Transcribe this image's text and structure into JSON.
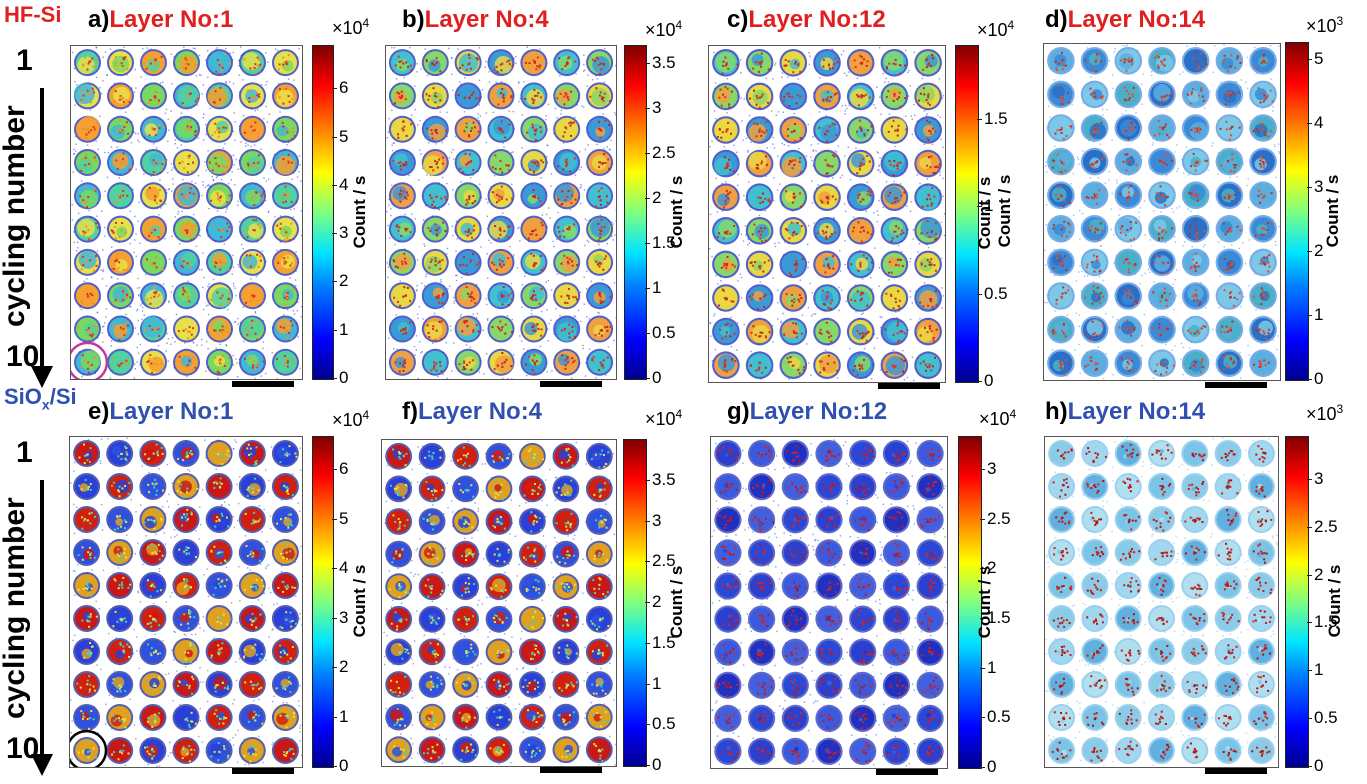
{
  "rows": [
    {
      "tag": "HF-Si",
      "tag_sub": "",
      "tag_suffix": "",
      "tag_color": "#e02020",
      "title_color": "#e02020",
      "cycle_label": "cycling number",
      "cycle_start": "1",
      "cycle_end": "10",
      "panels": [
        {
          "letter": "a)",
          "title": "Layer No:1",
          "exp_base": "×10",
          "exp_pow": "4",
          "ticks": [
            "0",
            "1",
            "2",
            "3",
            "4",
            "5",
            "6"
          ],
          "tick_fracs": [
            0,
            0.145,
            0.29,
            0.435,
            0.58,
            0.725,
            0.87
          ],
          "unit": "Count / s",
          "unit_side": "right",
          "style": "hf_bright",
          "highlight": "magenta"
        },
        {
          "letter": "b)",
          "title": "Layer No:4",
          "exp_base": "×10",
          "exp_pow": "4",
          "ticks": [
            "0",
            "0.5",
            "1",
            "1.5",
            "2",
            "2.5",
            "3",
            "3.5"
          ],
          "tick_fracs": [
            0,
            0.135,
            0.27,
            0.405,
            0.54,
            0.675,
            0.81,
            0.945
          ],
          "unit": "Count / s",
          "unit_side": "right",
          "style": "hf_mid",
          "highlight": ""
        },
        {
          "letter": "c)",
          "title": "Layer No:12",
          "exp_base": "×10",
          "exp_pow": "4",
          "ticks": [
            "0",
            "0.5",
            "1",
            "1.5"
          ],
          "tick_fracs": [
            0,
            0.26,
            0.52,
            0.78
          ],
          "unit": "Count / s",
          "unit_side": "left",
          "style": "hf_mid",
          "highlight": ""
        },
        {
          "letter": "d)",
          "title": "Layer No:14",
          "exp_base": "×10",
          "exp_pow": "3",
          "ticks": [
            "0",
            "1",
            "2",
            "3",
            "4",
            "5"
          ],
          "tick_fracs": [
            0,
            0.19,
            0.38,
            0.57,
            0.76,
            0.95
          ],
          "unit": "Count / s",
          "unit_side": "both",
          "style": "hf_sparse",
          "highlight": ""
        }
      ]
    },
    {
      "tag": "SiO",
      "tag_sub": "x",
      "tag_suffix": "/Si",
      "tag_color": "#3050b0",
      "title_color": "#3050b0",
      "cycle_label": "cycling number",
      "cycle_start": "1",
      "cycle_end": "10",
      "panels": [
        {
          "letter": "e)",
          "title": "Layer No:1",
          "exp_base": "×10",
          "exp_pow": "4",
          "ticks": [
            "0",
            "1",
            "2",
            "3",
            "4",
            "5",
            "6"
          ],
          "tick_fracs": [
            0,
            0.15,
            0.3,
            0.45,
            0.6,
            0.75,
            0.9
          ],
          "unit": "Count / s",
          "unit_side": "right",
          "style": "sio_hot",
          "highlight": "black"
        },
        {
          "letter": "f)",
          "title": "Layer No:4",
          "exp_base": "×10",
          "exp_pow": "4",
          "ticks": [
            "0",
            "0.5",
            "1",
            "1.5",
            "2",
            "2.5",
            "3",
            "3.5"
          ],
          "tick_fracs": [
            0,
            0.125,
            0.25,
            0.375,
            0.5,
            0.625,
            0.75,
            0.875
          ],
          "unit": "Count / s",
          "unit_side": "right",
          "style": "sio_hot",
          "highlight": ""
        },
        {
          "letter": "g)",
          "title": "Layer No:12",
          "exp_base": "×10",
          "exp_pow": "4",
          "ticks": [
            "0",
            "0.5",
            "1",
            "1.5",
            "2",
            "2.5",
            "3"
          ],
          "tick_fracs": [
            0,
            0.15,
            0.3,
            0.45,
            0.6,
            0.75,
            0.9
          ],
          "unit": "Count / s",
          "unit_side": "left",
          "style": "sio_blue",
          "highlight": ""
        },
        {
          "letter": "h)",
          "title": "Layer No:14",
          "exp_base": "×10",
          "exp_pow": "3",
          "ticks": [
            "0",
            "0.5",
            "1",
            "1.5",
            "2",
            "2.5",
            "3"
          ],
          "tick_fracs": [
            0,
            0.145,
            0.29,
            0.435,
            0.58,
            0.725,
            0.87
          ],
          "unit": "Count / s",
          "unit_side": "right",
          "style": "sio_sparse",
          "highlight": ""
        }
      ]
    }
  ],
  "grid": {
    "rows": 10,
    "cols": 7
  }
}
